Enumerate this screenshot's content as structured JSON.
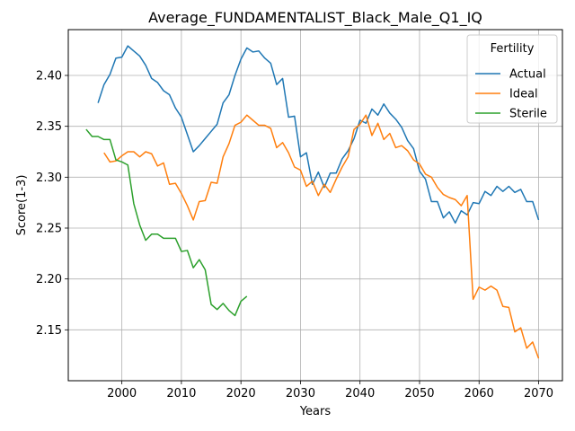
{
  "chart_data": {
    "type": "line",
    "title": "Average_FUNDAMENTALIST_Black_Male_Q1_IQ",
    "xlabel": "Years",
    "ylabel": "Score(1-3)",
    "xlim": [
      1991,
      2074
    ],
    "ylim": [
      2.1,
      2.445
    ],
    "xticks": [
      2000,
      2010,
      2020,
      2030,
      2040,
      2050,
      2060,
      2070
    ],
    "yticks": [
      2.15,
      2.2,
      2.25,
      2.3,
      2.35,
      2.4
    ],
    "ytick_labels": [
      "2.15",
      "2.20",
      "2.25",
      "2.30",
      "2.35",
      "2.40"
    ],
    "grid": true,
    "legend": {
      "title": "Fertility",
      "placement": "top-right"
    },
    "series": [
      {
        "name": "Actual",
        "color": "#1f77b4",
        "x": [
          1996,
          1997,
          1998,
          1999,
          2000,
          2001,
          2002,
          2003,
          2004,
          2005,
          2006,
          2007,
          2008,
          2009,
          2010,
          2011,
          2012,
          2013,
          2014,
          2015,
          2016,
          2017,
          2018,
          2019,
          2020,
          2021,
          2022,
          2023,
          2024,
          2025,
          2026,
          2027,
          2028,
          2029,
          2030,
          2031,
          2032,
          2033,
          2034,
          2035,
          2036,
          2037,
          2038,
          2039,
          2040,
          2041,
          2042,
          2043,
          2044,
          2045,
          2046,
          2047,
          2048,
          2049,
          2050,
          2051,
          2052,
          2053,
          2054,
          2055,
          2056,
          2057,
          2058,
          2059,
          2060,
          2061,
          2062,
          2063,
          2064,
          2065,
          2066,
          2067,
          2068,
          2069,
          2070
        ],
        "values": [
          2.373,
          2.391,
          2.401,
          2.417,
          2.418,
          2.429,
          2.424,
          2.419,
          2.41,
          2.397,
          2.393,
          2.385,
          2.381,
          2.368,
          2.359,
          2.342,
          2.325,
          2.331,
          2.338,
          2.345,
          2.352,
          2.373,
          2.381,
          2.4,
          2.416,
          2.427,
          2.423,
          2.424,
          2.417,
          2.412,
          2.391,
          2.397,
          2.359,
          2.36,
          2.32,
          2.324,
          2.293,
          2.305,
          2.29,
          2.304,
          2.304,
          2.318,
          2.326,
          2.338,
          2.356,
          2.353,
          2.367,
          2.361,
          2.372,
          2.363,
          2.357,
          2.349,
          2.336,
          2.328,
          2.306,
          2.298,
          2.276,
          2.276,
          2.26,
          2.266,
          2.255,
          2.267,
          2.263,
          2.275,
          2.274,
          2.286,
          2.282,
          2.291,
          2.286,
          2.291,
          2.285,
          2.288,
          2.276,
          2.276,
          2.258
        ]
      },
      {
        "name": "Ideal",
        "color": "#ff7f0e",
        "x": [
          1997,
          1998,
          1999,
          2000,
          2001,
          2002,
          2003,
          2004,
          2005,
          2006,
          2007,
          2008,
          2009,
          2010,
          2011,
          2012,
          2013,
          2014,
          2015,
          2016,
          2017,
          2018,
          2019,
          2020,
          2021,
          2022,
          2023,
          2024,
          2025,
          2026,
          2027,
          2028,
          2029,
          2030,
          2031,
          2032,
          2033,
          2034,
          2035,
          2036,
          2037,
          2038,
          2039,
          2040,
          2041,
          2042,
          2043,
          2044,
          2045,
          2046,
          2047,
          2048,
          2049,
          2050,
          2051,
          2052,
          2053,
          2054,
          2055,
          2056,
          2057,
          2058,
          2059,
          2060,
          2061,
          2062,
          2063,
          2064,
          2065,
          2066,
          2067,
          2068,
          2069,
          2070
        ],
        "values": [
          2.324,
          2.315,
          2.316,
          2.321,
          2.325,
          2.325,
          2.32,
          2.325,
          2.323,
          2.311,
          2.314,
          2.293,
          2.294,
          2.284,
          2.272,
          2.258,
          2.276,
          2.277,
          2.295,
          2.294,
          2.32,
          2.333,
          2.351,
          2.354,
          2.361,
          2.356,
          2.351,
          2.351,
          2.348,
          2.329,
          2.334,
          2.324,
          2.31,
          2.307,
          2.291,
          2.296,
          2.282,
          2.293,
          2.285,
          2.298,
          2.31,
          2.32,
          2.347,
          2.352,
          2.361,
          2.341,
          2.353,
          2.337,
          2.343,
          2.329,
          2.331,
          2.326,
          2.317,
          2.313,
          2.303,
          2.3,
          2.29,
          2.283,
          2.28,
          2.278,
          2.272,
          2.282,
          2.18,
          2.192,
          2.189,
          2.193,
          2.189,
          2.173,
          2.172,
          2.148,
          2.152,
          2.132,
          2.138,
          2.122
        ]
      },
      {
        "name": "Sterile",
        "color": "#2ca02c",
        "x": [
          1994,
          1995,
          1996,
          1997,
          1998,
          1999,
          2000,
          2001,
          2002,
          2003,
          2004,
          2005,
          2006,
          2007,
          2008,
          2009,
          2010,
          2011,
          2012,
          2013,
          2014,
          2015,
          2016,
          2017,
          2018,
          2019,
          2020,
          2021
        ],
        "values": [
          2.347,
          2.34,
          2.34,
          2.337,
          2.337,
          2.317,
          2.315,
          2.312,
          2.274,
          2.253,
          2.238,
          2.244,
          2.244,
          2.24,
          2.24,
          2.24,
          2.227,
          2.228,
          2.211,
          2.219,
          2.209,
          2.175,
          2.17,
          2.176,
          2.169,
          2.164,
          2.178,
          2.183
        ]
      }
    ]
  }
}
